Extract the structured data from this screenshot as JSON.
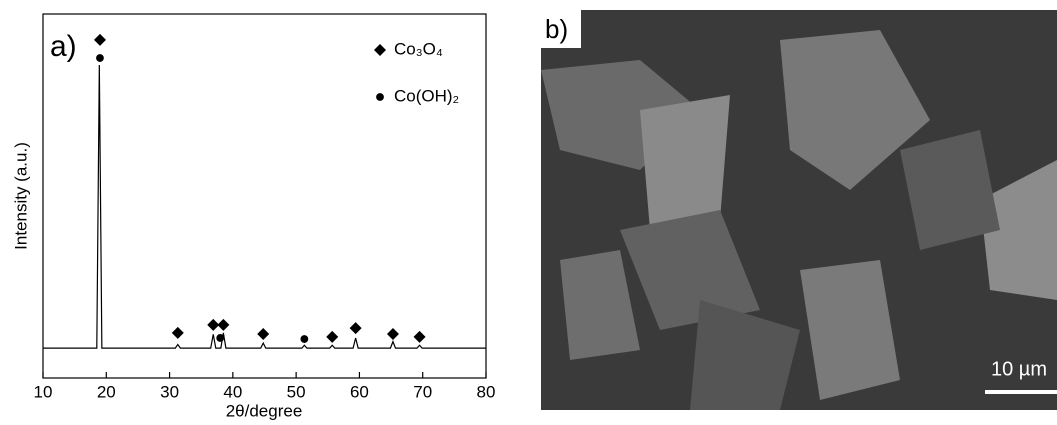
{
  "chart_data": {
    "type": "line",
    "panel_label": "a)",
    "x_label": "2θ/degree",
    "y_label": "Intensity (a.u.)",
    "x": [
      10,
      18.5,
      18.9,
      19.3,
      30.9,
      31.3,
      31.7,
      36.5,
      36.9,
      37.3,
      38.1,
      38.5,
      38.9,
      44.4,
      44.8,
      45.2,
      50.9,
      51.3,
      51.7,
      55.3,
      55.7,
      56.1,
      59.0,
      59.4,
      59.8,
      64.9,
      65.3,
      65.7,
      69.1,
      69.5,
      69.9,
      80
    ],
    "series": [
      {
        "color": "#000000",
        "values": [
          8.2,
          8.2,
          86,
          8.2,
          8.2,
          9.2,
          8.2,
          8.2,
          12,
          8.2,
          8.2,
          12.4,
          8.2,
          8.2,
          9.6,
          8.2,
          8.2,
          9,
          8.2,
          8.2,
          9,
          8.2,
          8.2,
          11,
          8.2,
          8.2,
          10,
          8.2,
          8.2,
          9,
          8.2,
          8.2
        ]
      }
    ],
    "markers": [
      {
        "name": "Co₃O₄",
        "shape": "diamond",
        "x": [
          19,
          31.3,
          36.9,
          38.5,
          44.8,
          55.7,
          59.4,
          65.3,
          69.5
        ],
        "y": [
          92.9,
          12.4,
          14.6,
          14.6,
          12.1,
          11.3,
          13.7,
          12.1,
          11.3
        ]
      },
      {
        "name": "Co(OH)₂",
        "shape": "circle",
        "x": [
          19,
          38,
          51.3
        ],
        "y": [
          87.9,
          11,
          10.7
        ]
      }
    ],
    "xlim": [
      10,
      80
    ],
    "xticks": [
      10,
      20,
      30,
      40,
      50,
      60,
      70,
      80
    ],
    "ylim": [
      0,
      100
    ],
    "legend": "upper right"
  },
  "image_panel": {
    "panel_label": "b)",
    "scale_bar": "10 µm"
  }
}
